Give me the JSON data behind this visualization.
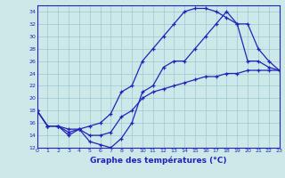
{
  "line1_x": [
    0,
    1,
    2,
    3,
    4,
    5,
    6,
    7,
    8,
    9,
    10,
    11,
    12,
    13,
    14,
    15,
    16,
    17,
    18,
    19,
    20,
    21,
    22,
    23
  ],
  "line1_y": [
    18,
    15.5,
    15.5,
    14,
    15,
    15.5,
    16,
    17.5,
    21,
    22,
    26,
    28,
    30,
    32,
    34,
    34.5,
    34.5,
    34,
    33,
    32,
    26,
    26,
    25,
    24.5
  ],
  "line2_x": [
    0,
    1,
    2,
    3,
    4,
    5,
    6,
    7,
    8,
    9,
    10,
    11,
    12,
    13,
    14,
    15,
    16,
    17,
    18,
    19,
    20,
    21,
    22,
    23
  ],
  "line2_y": [
    18,
    15.5,
    15.5,
    14.5,
    15,
    13,
    12.5,
    12,
    13.5,
    16,
    21,
    22,
    25,
    26,
    26,
    28,
    30,
    32,
    34,
    32,
    32,
    28,
    26,
    24.5
  ],
  "line3_x": [
    0,
    1,
    2,
    3,
    4,
    5,
    6,
    7,
    8,
    9,
    10,
    11,
    12,
    13,
    14,
    15,
    16,
    17,
    18,
    19,
    20,
    21,
    22,
    23
  ],
  "line3_y": [
    18,
    15.5,
    15.5,
    15,
    15,
    14,
    14,
    14.5,
    17,
    18,
    20,
    21,
    21.5,
    22,
    22.5,
    23,
    23.5,
    23.5,
    24,
    24,
    24.5,
    24.5,
    24.5,
    24.5
  ],
  "color": "#2222bb",
  "bg_color": "#cce8e8",
  "grid_color": "#9ac8d0",
  "xlabel": "Graphe des températures (°C)",
  "ylim": [
    12,
    35
  ],
  "xlim": [
    0,
    23
  ],
  "yticks": [
    12,
    14,
    16,
    18,
    20,
    22,
    24,
    26,
    28,
    30,
    32,
    34
  ],
  "xticks": [
    0,
    1,
    2,
    3,
    4,
    5,
    6,
    7,
    8,
    9,
    10,
    11,
    12,
    13,
    14,
    15,
    16,
    17,
    18,
    19,
    20,
    21,
    22,
    23
  ]
}
